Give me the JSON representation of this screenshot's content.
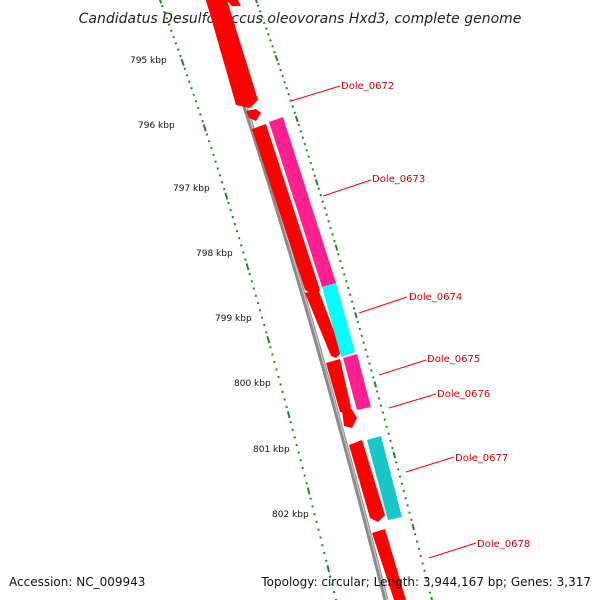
{
  "title": "Candidatus Desulfococcus oleovorans Hxd3, complete genome",
  "footer": {
    "accession": "Accession: NC_009943",
    "summary": "Topology: circular; Length: 3,944,167 bp; Genes: 3,317"
  },
  "colors": {
    "backbone": "#8a8a8a",
    "tick": "#1f8a1f",
    "label_line": "#ff0000",
    "label_text": "#cc0000",
    "forward_gene": "#ff0000",
    "magenta_gene": "#ff1f8f",
    "cyan_gene": "#00ffff",
    "teal_gene": "#17c6c6"
  },
  "scale_labels": [
    "795 kbp",
    "796 kbp",
    "797 kbp",
    "798 kbp",
    "799 kbp",
    "800 kbp",
    "801 kbp",
    "802 kbp"
  ],
  "gene_labels": [
    "Dole_0672",
    "Dole_0673",
    "Dole_0674",
    "Dole_0675",
    "Dole_0676",
    "Dole_0677",
    "Dole_0678"
  ]
}
